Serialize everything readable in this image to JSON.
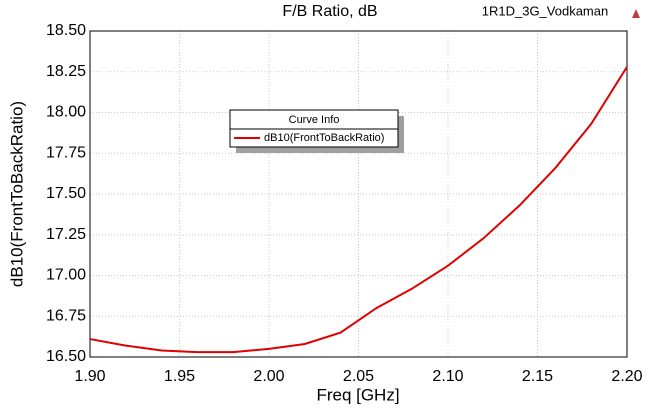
{
  "chart_data": {
    "type": "line",
    "title": "F/B Ratio, dB",
    "project": "1R1D_3G_Vodkaman",
    "x_label": "Freq [GHz]",
    "y_label": "dB10(FrontToBackRatio)",
    "legend_title": "Curve Info",
    "x": [
      1.9,
      1.92,
      1.94,
      1.96,
      1.98,
      2.0,
      2.02,
      2.04,
      2.06,
      2.08,
      2.1,
      2.12,
      2.14,
      2.16,
      2.18,
      2.2
    ],
    "series": [
      {
        "name": "dB10(FrontToBackRatio)",
        "color": "#e00000",
        "values": [
          16.61,
          16.57,
          16.54,
          16.53,
          16.53,
          16.55,
          16.58,
          16.65,
          16.8,
          16.92,
          17.06,
          17.23,
          17.43,
          17.66,
          17.93,
          18.28
        ]
      }
    ],
    "xlim": [
      1.9,
      2.2
    ],
    "xticks": [
      {
        "value": 1.9,
        "label": "1.90"
      },
      {
        "value": 1.95,
        "label": "1.95"
      },
      {
        "value": 2.0,
        "label": "2.00"
      },
      {
        "value": 2.05,
        "label": "2.05"
      },
      {
        "value": 2.1,
        "label": "2.10"
      },
      {
        "value": 2.15,
        "label": "2.15"
      },
      {
        "value": 2.2,
        "label": "2.20"
      }
    ],
    "ylim": [
      16.5,
      18.5
    ],
    "yticks": [
      {
        "value": 16.5,
        "label": "16.50"
      },
      {
        "value": 16.75,
        "label": "16.75"
      },
      {
        "value": 17.0,
        "label": "17.00"
      },
      {
        "value": 17.25,
        "label": "17.25"
      },
      {
        "value": 17.5,
        "label": "17.50"
      },
      {
        "value": 17.75,
        "label": "17.75"
      },
      {
        "value": 18.0,
        "label": "18.00"
      },
      {
        "value": 18.25,
        "label": "18.25"
      },
      {
        "value": 18.5,
        "label": "18.50"
      }
    ],
    "grid": true
  }
}
